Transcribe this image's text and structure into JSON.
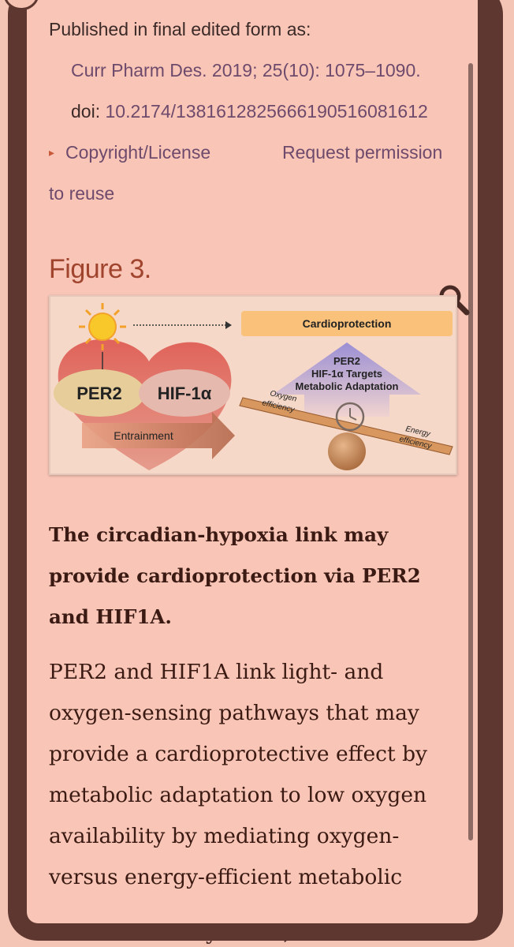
{
  "background": {
    "bottom_text": "Glucose and fatty acids, two cellular fuel"
  },
  "citation": {
    "published_label": "Published in final edited form as:",
    "journal": "Curr Pharm Des. 2019; 25(10): 1075–1090.",
    "doi_prefix": "doi: ",
    "doi": "10.2174/1381612825666190516081612",
    "copyright_label": "Copyright/License",
    "permission_label": "Request permission",
    "permission_label_2": "to reuse"
  },
  "figure": {
    "title": "Figure 3.",
    "diagram": {
      "per2": "PER2",
      "hif1a": "HIF-1α",
      "entrainment": "Entrainment",
      "cardioprotection": "Cardioprotection",
      "arrow_l1": "PER2",
      "arrow_l2": "HIF-1α Targets",
      "arrow_l3": "Metabolic Adaptation",
      "oxygen_l1": "Oxygen",
      "oxygen_l2": "efficiency",
      "energy_l1": "Energy",
      "energy_l2": "efficiency"
    },
    "caption": "The circadian-hypoxia link may provide cardioprotection via PER2 and HIF1A.",
    "description": "PER2 and HIF1A link light- and oxygen-sensing pathways that may provide a cardioprotective effect by metabolic adaptation to low oxygen availability by mediating oxygen- versus energy-efficient metabolic"
  },
  "colors": {
    "accent": "#a0442d",
    "link": "#6e4a6c",
    "frame": "#5e3830"
  }
}
